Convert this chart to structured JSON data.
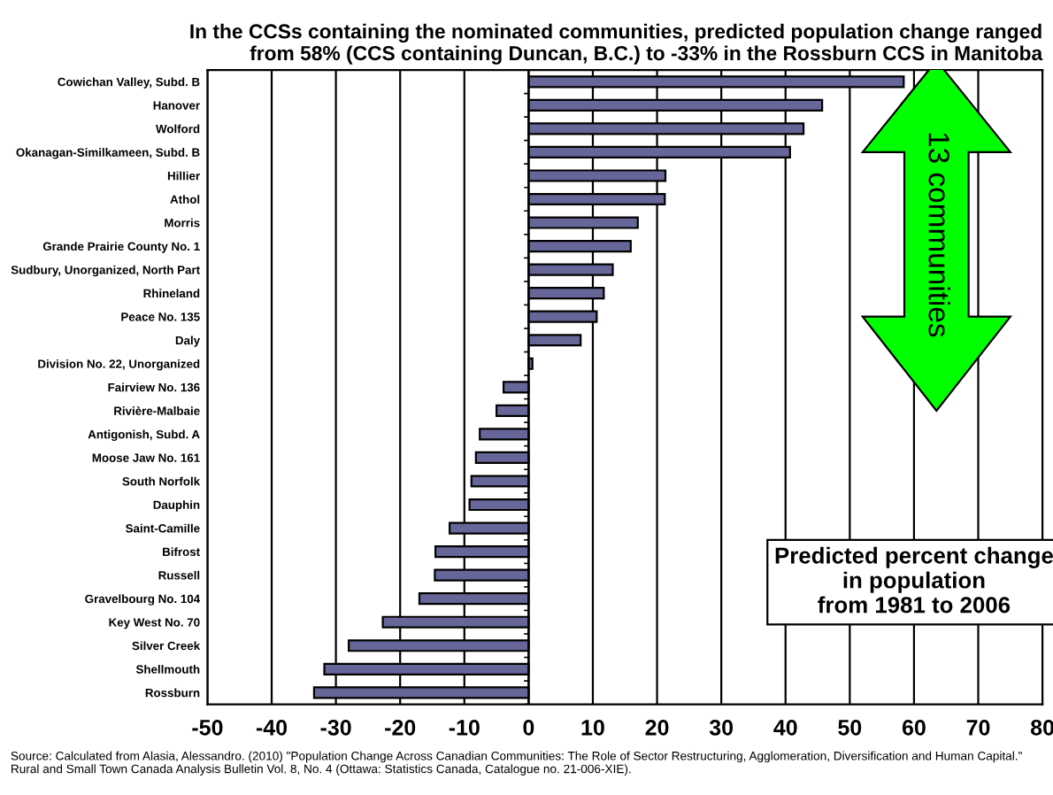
{
  "chart_data": {
    "type": "bar",
    "orientation": "horizontal",
    "title": "In the CCSs containing the nominated communities, predicted population change ranged\nfrom 58% (CCS containing Duncan, B.C.) to -33% in the Rossburn CCS in Manitoba",
    "categories": [
      "Cowichan Valley, Subd. B",
      "Hanover",
      "Wolford",
      "Okanagan-Similkameen, Subd. B",
      "Hillier",
      "Athol",
      "Morris",
      "Grande Prairie County No. 1",
      "Sudbury, Unorganized, North Part",
      "Rhineland",
      "Peace No. 135",
      "Daly",
      "Division No. 22, Unorganized",
      "Fairview No. 136",
      "Rivière-Malbaie",
      "Antigonish, Subd. A",
      "Moose Jaw No. 161",
      "South Norfolk",
      "Dauphin",
      "Saint-Camille",
      "Bifrost",
      "Russell",
      "Gravelbourg No. 104",
      "Key West No. 70",
      "Silver Creek",
      "Shellmouth",
      "Rossburn"
    ],
    "values": [
      58.4,
      45.7,
      42.8,
      40.7,
      21.3,
      21.2,
      17.0,
      15.9,
      13.1,
      11.7,
      10.6,
      8.1,
      0.6,
      -3.9,
      -5.0,
      -7.6,
      -8.2,
      -8.9,
      -9.2,
      -12.3,
      -14.5,
      -14.6,
      -17.0,
      -22.7,
      -28.0,
      -31.8,
      -33.4
    ],
    "color": "#666699",
    "xlim": [
      -50,
      80
    ],
    "xticks": [
      -50,
      -40,
      -30,
      -20,
      -10,
      0,
      10,
      20,
      30,
      40,
      50,
      60,
      70,
      80
    ],
    "grid": "x",
    "annotations": [
      "13 communities",
      "Predicted percent change\nin population\nfrom 1981 to 2006",
      "Source: Calculated from Alasia, Alessandro. (2010) \"Population Change Across Canadian Communities: The Role of Sector Restructuring, Agglomeration, Diversification and Human Capital.\" Rural and Small Town Canada Analysis Bulletin Vol. 8, No. 4 (Ottawa: Statistics Canada, Catalogue no. 21-006-XIE)."
    ]
  }
}
